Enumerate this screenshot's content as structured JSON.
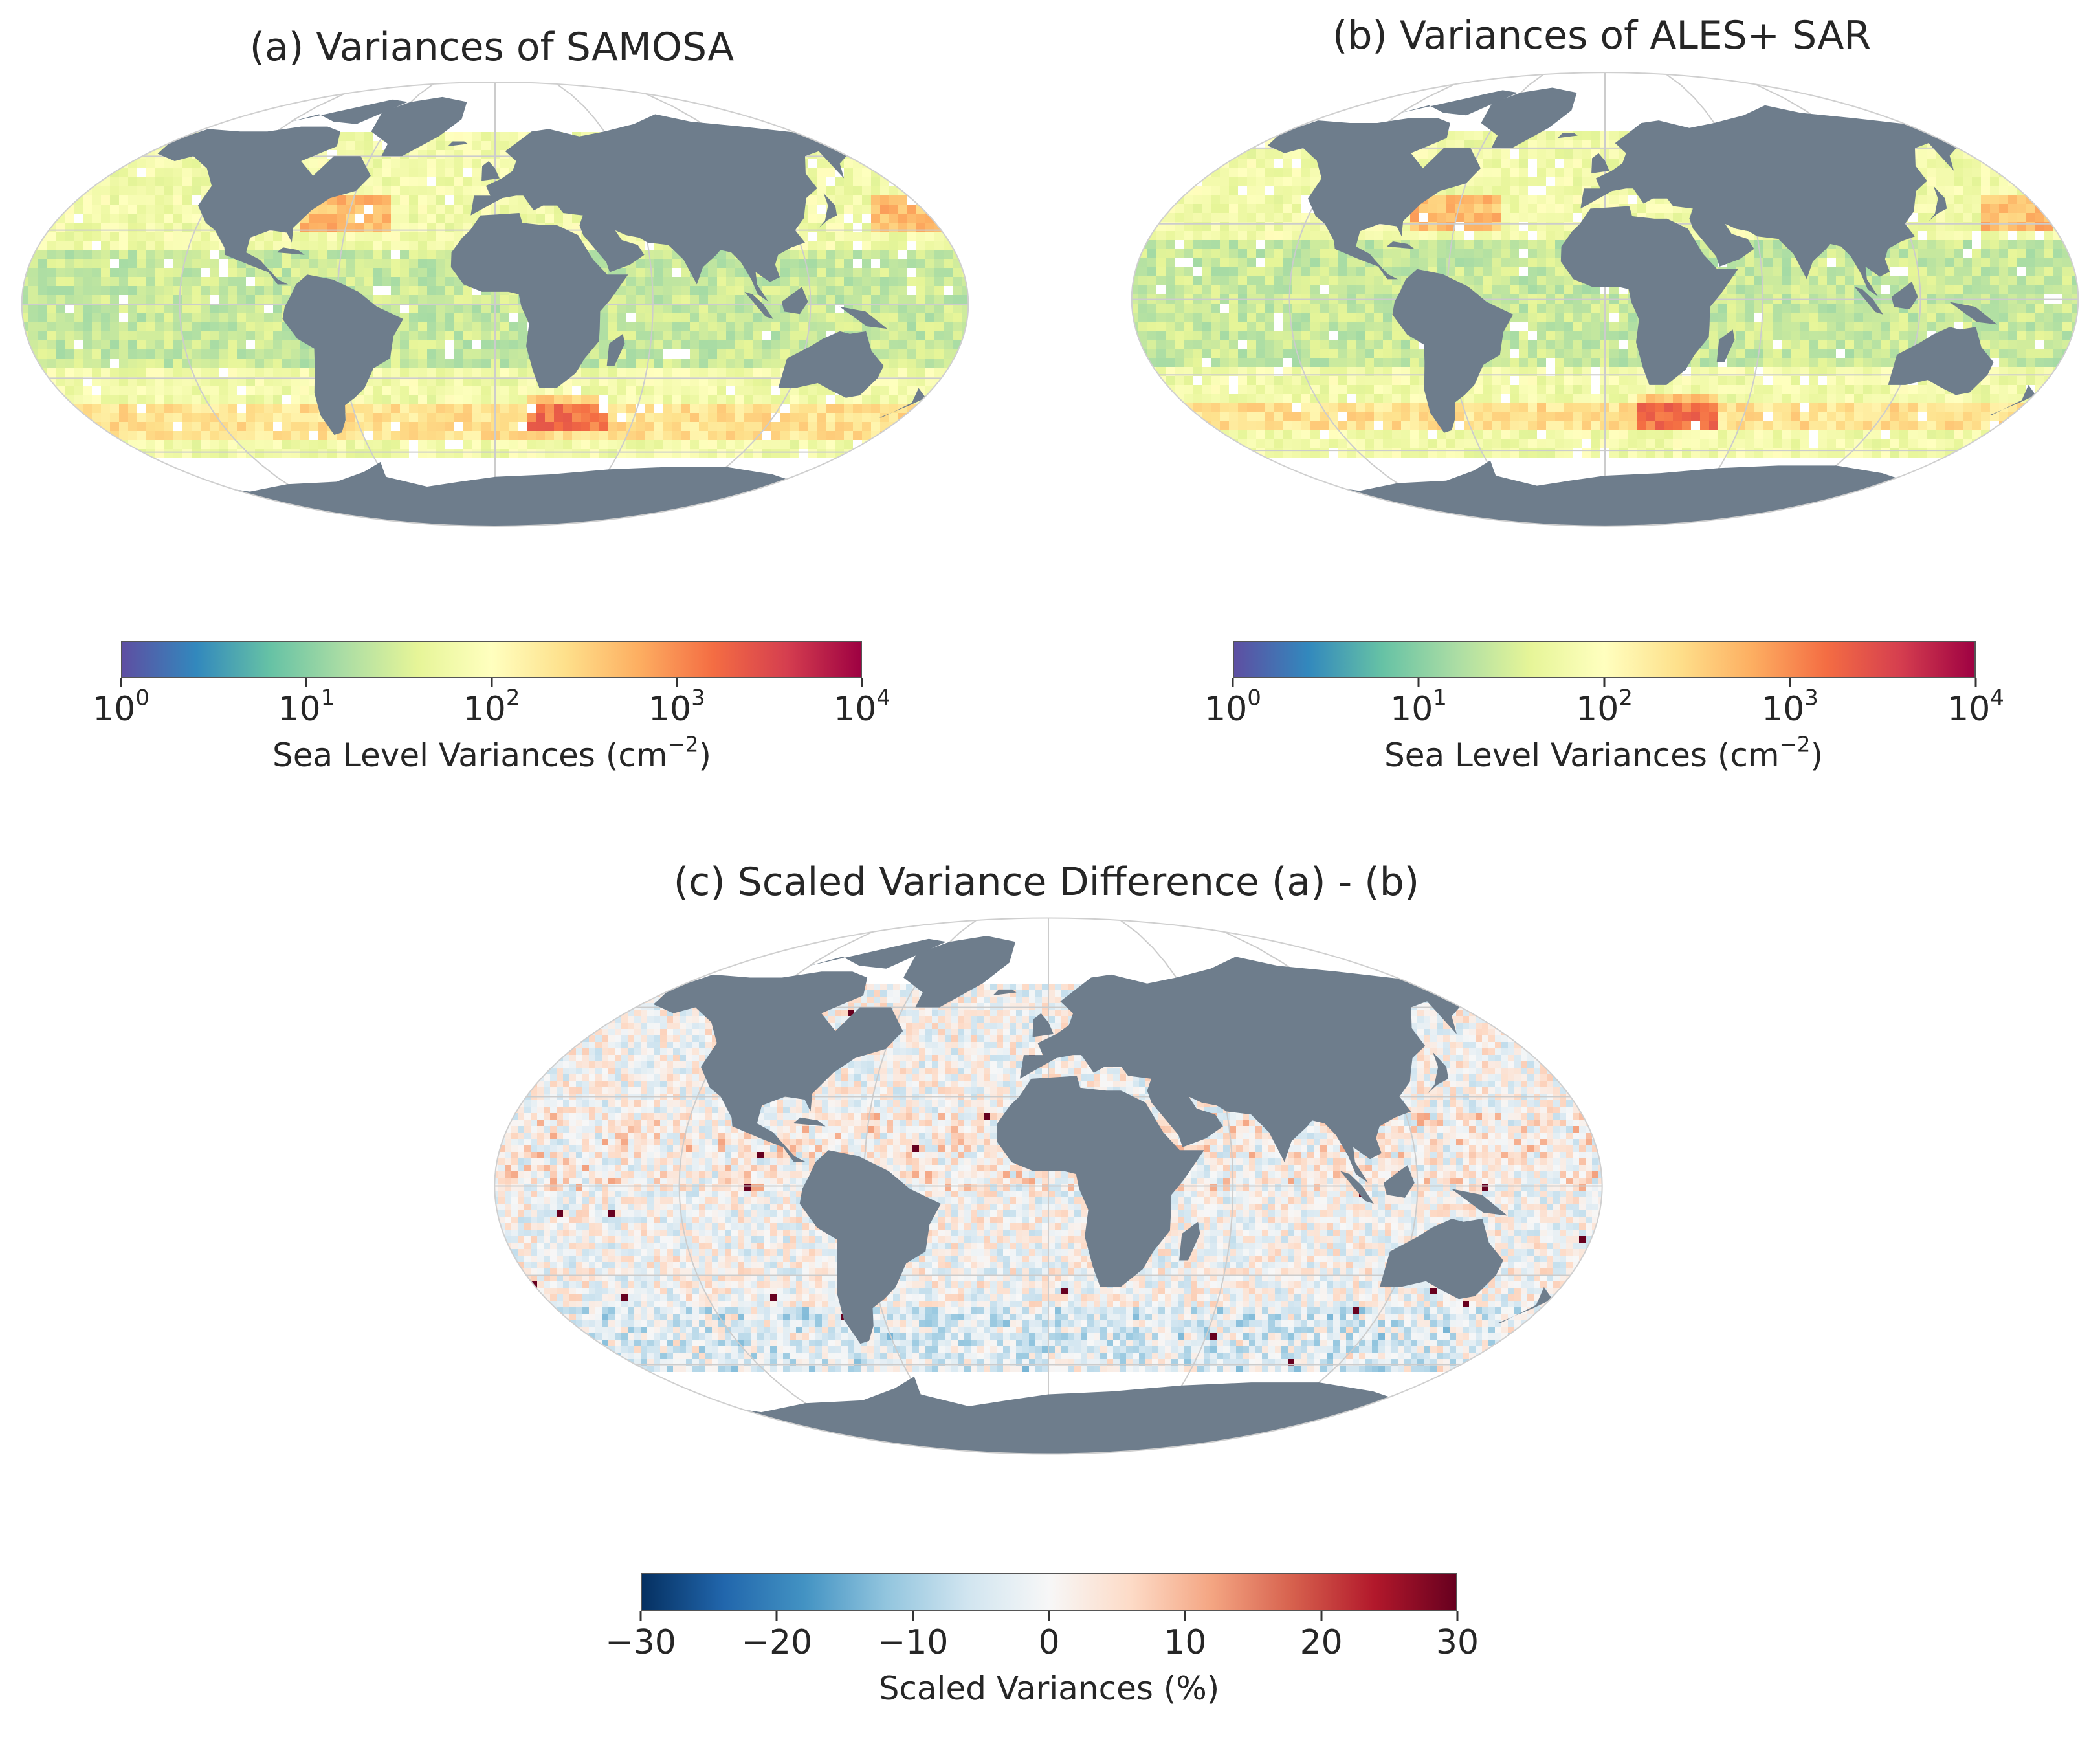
{
  "panels": {
    "a": {
      "title": "(a) Variances of SAMOSA",
      "colorbar": {
        "label": "Sea Level Variances (cm",
        "label_sup": "−2",
        "label_close": ")",
        "scale": "log",
        "range": [
          1,
          10000
        ],
        "ticks": [
          {
            "base": "10",
            "exp": "0"
          },
          {
            "base": "10",
            "exp": "1"
          },
          {
            "base": "10",
            "exp": "2"
          },
          {
            "base": "10",
            "exp": "3"
          },
          {
            "base": "10",
            "exp": "4"
          }
        ],
        "colormap": "Spectral_r"
      }
    },
    "b": {
      "title": "(b) Variances of ALES+ SAR",
      "colorbar": {
        "label": "Sea Level Variances (cm",
        "label_sup": "−2",
        "label_close": ")",
        "scale": "log",
        "range": [
          1,
          10000
        ],
        "ticks": [
          {
            "base": "10",
            "exp": "0"
          },
          {
            "base": "10",
            "exp": "1"
          },
          {
            "base": "10",
            "exp": "2"
          },
          {
            "base": "10",
            "exp": "3"
          },
          {
            "base": "10",
            "exp": "4"
          }
        ],
        "colormap": "Spectral_r"
      }
    },
    "c": {
      "title": "(c) Scaled Variance Difference (a) - (b)",
      "colorbar": {
        "label": "Scaled Variances (%)",
        "scale": "linear",
        "range": [
          -30,
          30
        ],
        "ticks": [
          "−30",
          "−20",
          "−10",
          "0",
          "10",
          "20",
          "30"
        ],
        "colormap": "RdBu_r"
      }
    }
  },
  "colors": {
    "land": "#6e7d8c",
    "gridline": "#cccccc",
    "spectral": [
      "#5e4fa2",
      "#3288bd",
      "#66c2a5",
      "#abdda4",
      "#e6f598",
      "#ffffbf",
      "#fee08b",
      "#fdae61",
      "#f46d43",
      "#d53e4f",
      "#9e0142"
    ],
    "rdbu": [
      "#053061",
      "#2166ac",
      "#4393c3",
      "#92c5de",
      "#d1e5f0",
      "#f7f7f7",
      "#fddbc7",
      "#f4a582",
      "#d6604d",
      "#b2182b",
      "#67001f"
    ]
  }
}
